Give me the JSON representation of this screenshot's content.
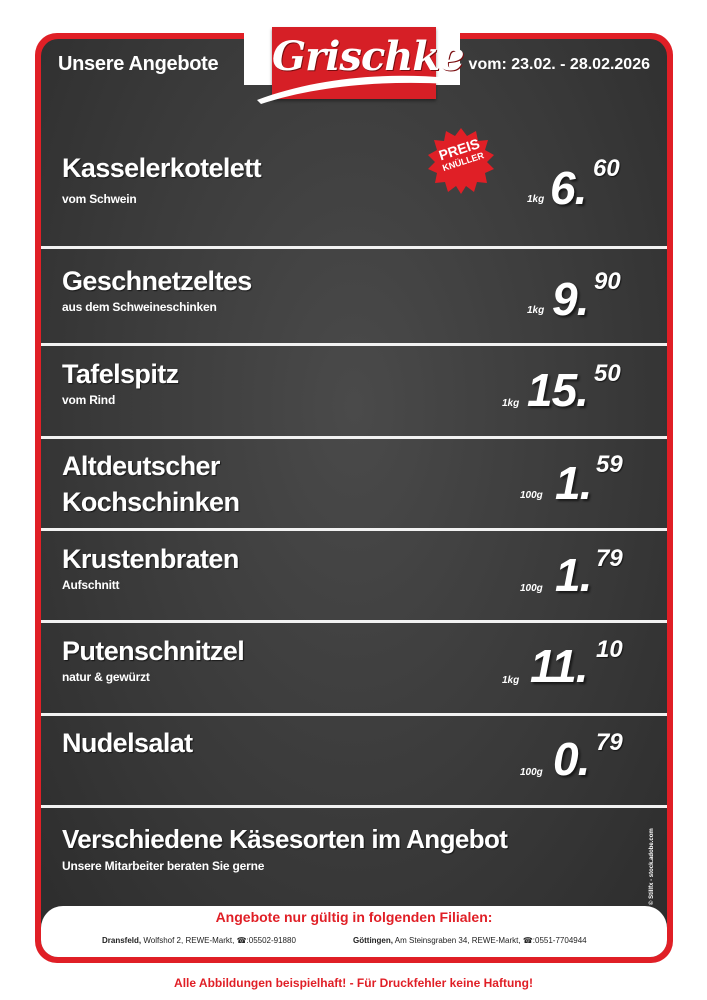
{
  "header": {
    "title": "Unsere Angebote",
    "brand": "Grischke",
    "validity": "vom: 23.02. - 28.02.2026"
  },
  "badge": {
    "line1": "PREIS",
    "line2": "KNÜLLER"
  },
  "products": [
    {
      "name": "Kasselerkotelett",
      "sub": "vom Schwein",
      "unit": "1kg",
      "price_main": "6.",
      "price_cents": "60"
    },
    {
      "name": "Geschnetzeltes",
      "sub": "aus dem Schweineschinken",
      "unit": "1kg",
      "price_main": "9.",
      "price_cents": "90"
    },
    {
      "name": "Tafelspitz",
      "sub": "vom Rind",
      "unit": "1kg",
      "price_main": "15.",
      "price_cents": "50"
    },
    {
      "name_line1": "Altdeutscher",
      "name_line2": "Kochschinken",
      "unit": "100g",
      "price_main": "1.",
      "price_cents": "59"
    },
    {
      "name": "Krustenbraten",
      "sub": "Aufschnitt",
      "unit": "100g",
      "price_main": "1.",
      "price_cents": "79"
    },
    {
      "name": "Putenschnitzel",
      "sub": "natur & gewürzt",
      "unit": "1kg",
      "price_main": "11.",
      "price_cents": "10"
    },
    {
      "name": "Nudelsalat",
      "unit": "100g",
      "price_main": "0.",
      "price_cents": "79"
    }
  ],
  "cheese": {
    "title": "Verschiedene Käsesorten im Angebot",
    "sub": "Unsere Mitarbeiter beraten Sie gerne"
  },
  "credit": "© Stillfx - stock.adobe.com",
  "footer": {
    "heading": "Angebote nur gültig in folgenden Filialen:",
    "locations": [
      {
        "city": "Dransfeld,",
        "detail": "Wolfshof 2, REWE-Markt, ☎:05502-91880"
      },
      {
        "city": "Göttingen,",
        "detail": "Am Steinsgraben 34, REWE-Markt, ☎:0551-7704944"
      }
    ]
  },
  "disclaimer": "Alle Abbildungen beispielhaft! - Für Druckfehler keine Haftung!",
  "colors": {
    "accent": "#e01f26",
    "board": "#3a3a3a"
  }
}
